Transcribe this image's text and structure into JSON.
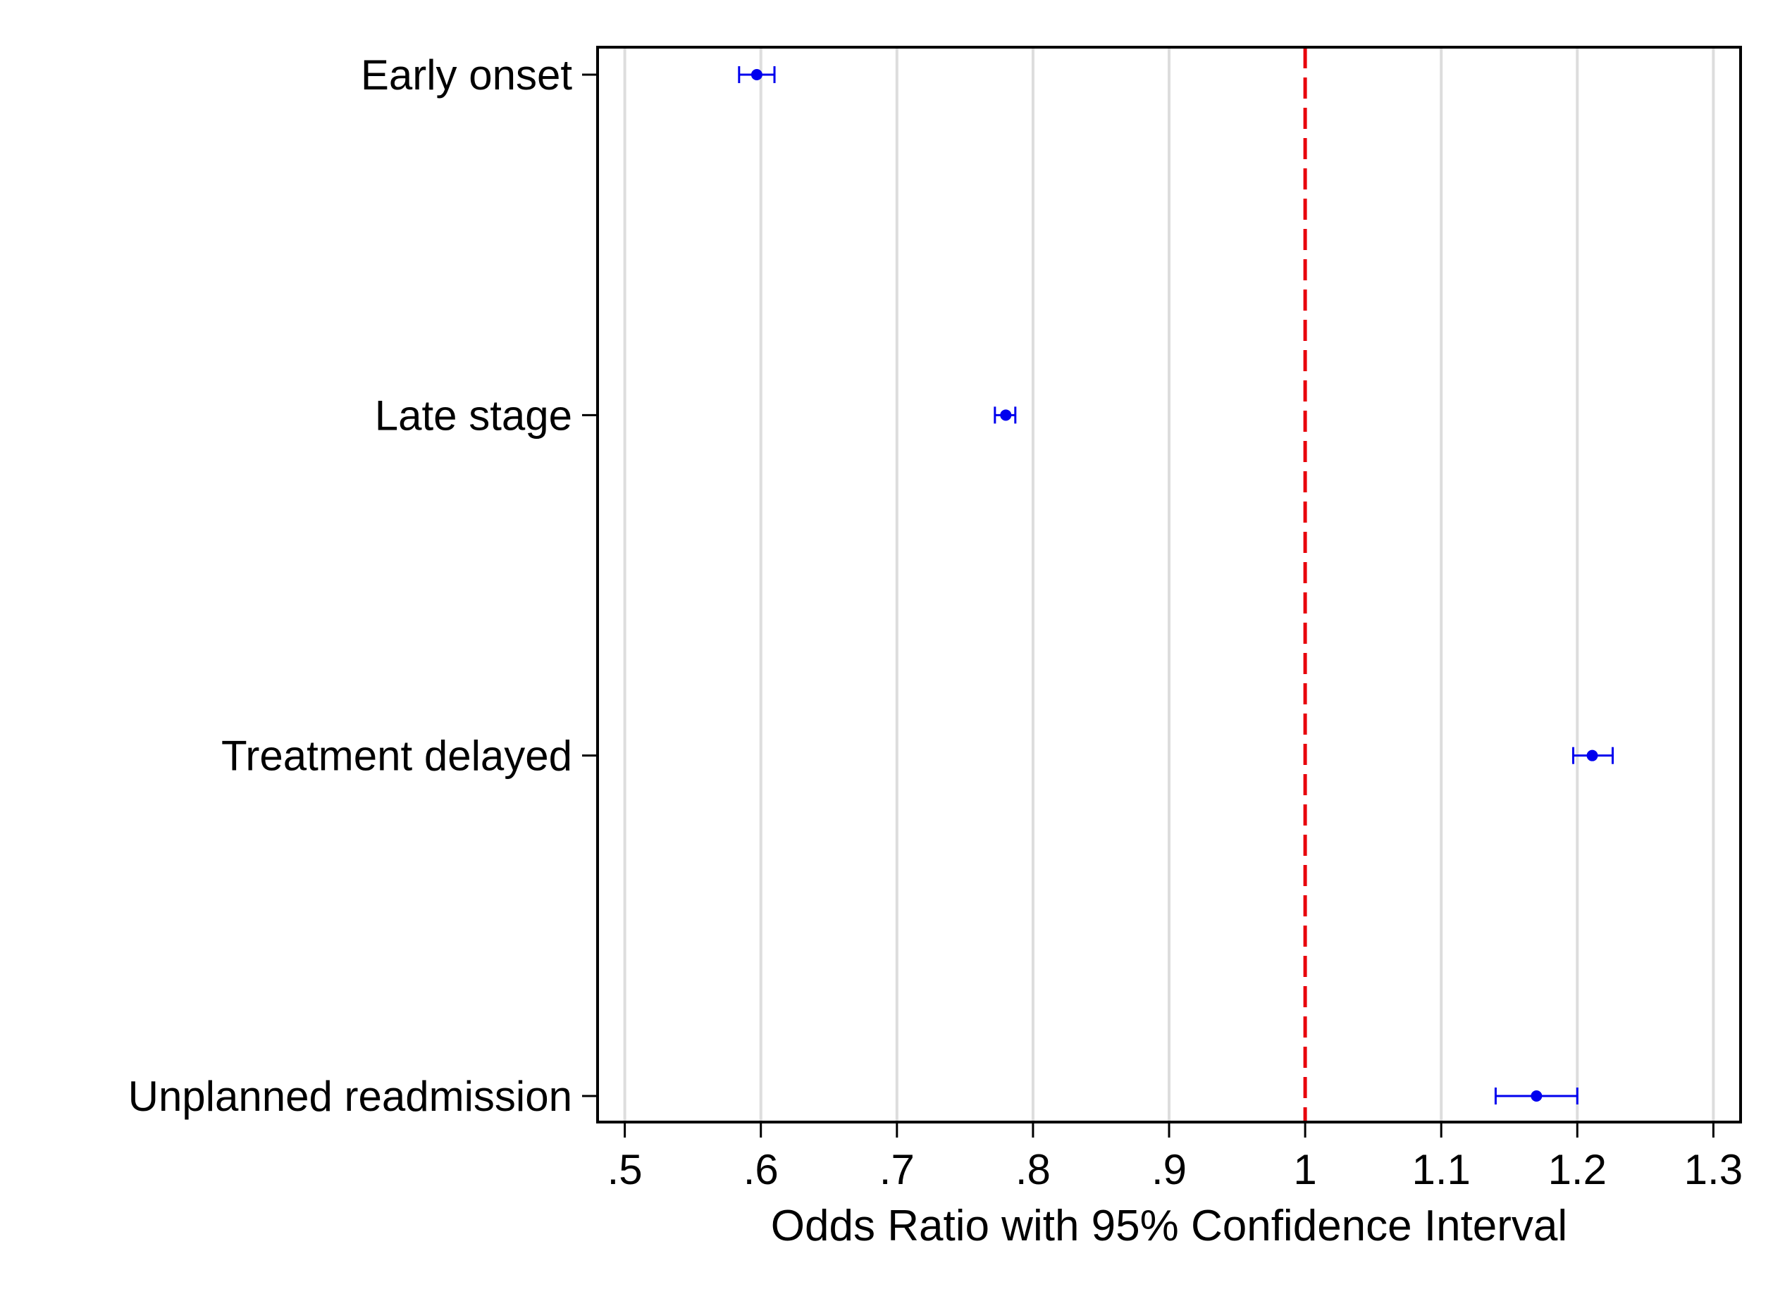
{
  "chart_data": {
    "type": "scatter",
    "subtype": "forest-plot",
    "title": "",
    "xlabel": "Odds Ratio with 95% Confidence Interval",
    "ylabel": "",
    "xlim": [
      0.48,
      1.32
    ],
    "x_ticks": [
      0.5,
      0.6,
      0.7,
      0.8,
      0.9,
      1.0,
      1.1,
      1.2,
      1.3
    ],
    "x_tick_labels": [
      ".5",
      ".6",
      ".7",
      ".8",
      ".9",
      "1",
      "1.1",
      "1.2",
      "1.3"
    ],
    "reference_line": {
      "x": 1,
      "style": "dashed",
      "color": "#e8000b"
    },
    "grid": "vertical",
    "legend": "none",
    "point_color": "#0000ee",
    "rows": [
      {
        "label": "Early onset",
        "estimate": 0.597,
        "ci_low": 0.584,
        "ci_high": 0.61
      },
      {
        "label": "Late stage",
        "estimate": 0.78,
        "ci_low": 0.772,
        "ci_high": 0.787
      },
      {
        "label": "Treatment delayed",
        "estimate": 1.211,
        "ci_low": 1.197,
        "ci_high": 1.226
      },
      {
        "label": "Unplanned readmission",
        "estimate": 1.17,
        "ci_low": 1.14,
        "ci_high": 1.2
      }
    ]
  }
}
